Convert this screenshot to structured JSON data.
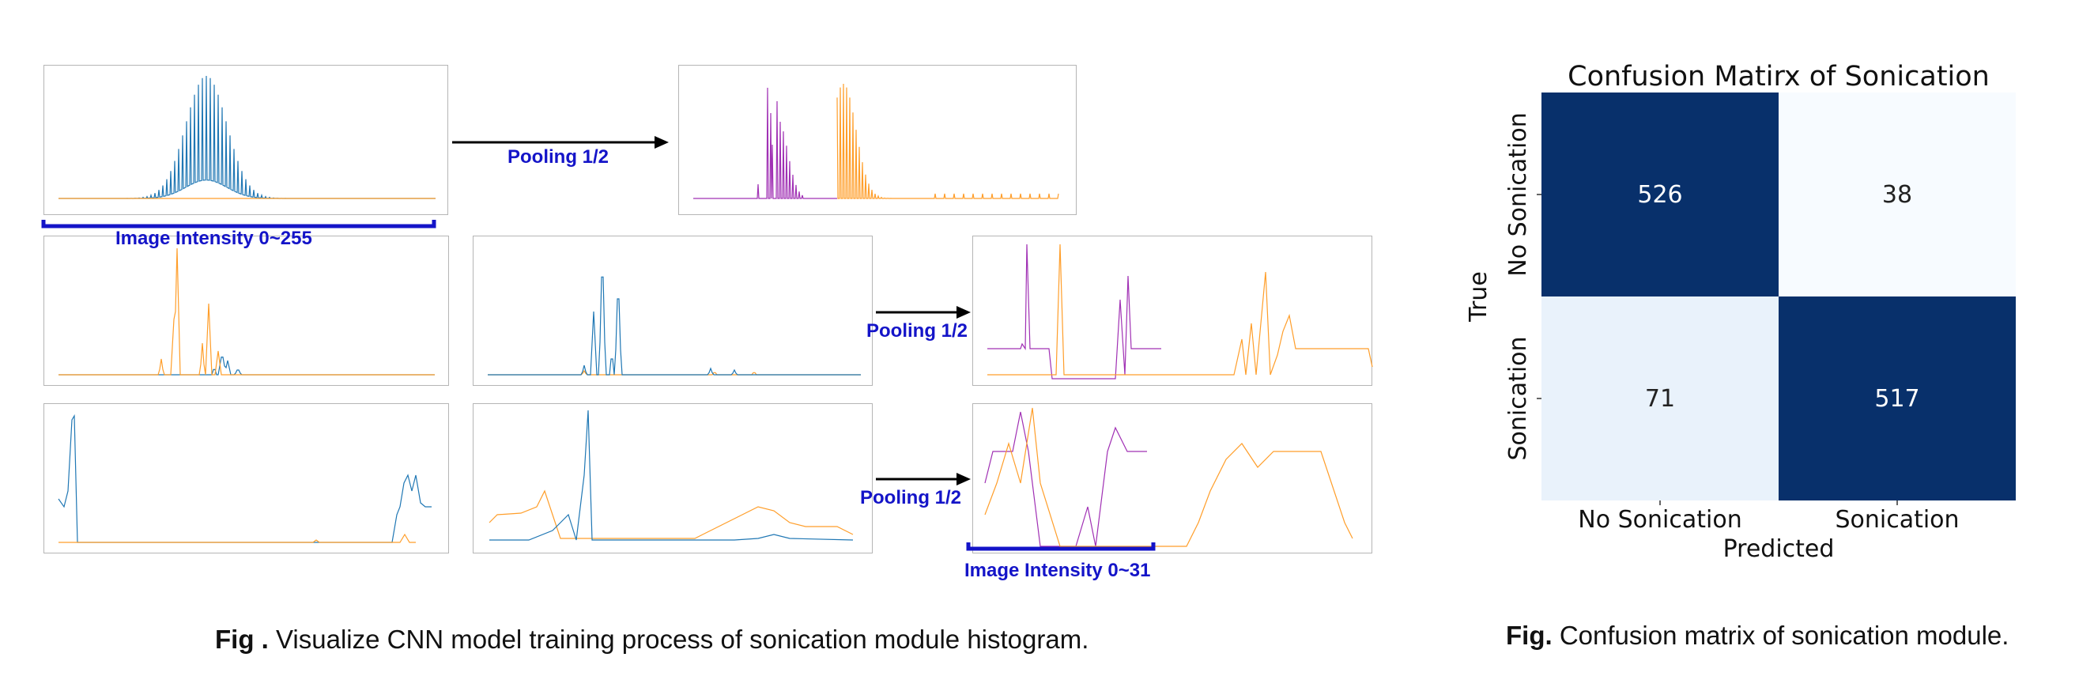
{
  "left_figure": {
    "arrow_labels": [
      "Pooling 1/2",
      "Pooling 1/2",
      "Pooling 1/2"
    ],
    "bracket_labels": [
      "Image Intensity 0~255",
      "Image Intensity 0~31"
    ],
    "caption_bold": "Fig .",
    "caption_text": " Visualize CNN model training process of sonication module histogram."
  },
  "right_figure": {
    "caption_bold": "Fig.",
    "caption_text": " Confusion matrix of sonication module."
  },
  "colors": {
    "blue_series": "#1f77b4",
    "orange_series": "#ff9e2a",
    "purple_series": "#a030b4",
    "annotation_blue": "#1414c8",
    "cm_dark": "#08306b",
    "cm_light": "#f7fbff",
    "cm_mid_light": "#e9f2fb"
  },
  "chart_data": [
    {
      "type": "heatmap",
      "title": "Confusion Matirx of Sonication",
      "xlabel": "Predicted",
      "ylabel": "True",
      "x_categories": [
        "No Sonication",
        "Sonication"
      ],
      "y_categories": [
        "No Sonication",
        "Sonication"
      ],
      "values": [
        [
          526,
          38
        ],
        [
          71,
          517
        ]
      ]
    }
  ]
}
